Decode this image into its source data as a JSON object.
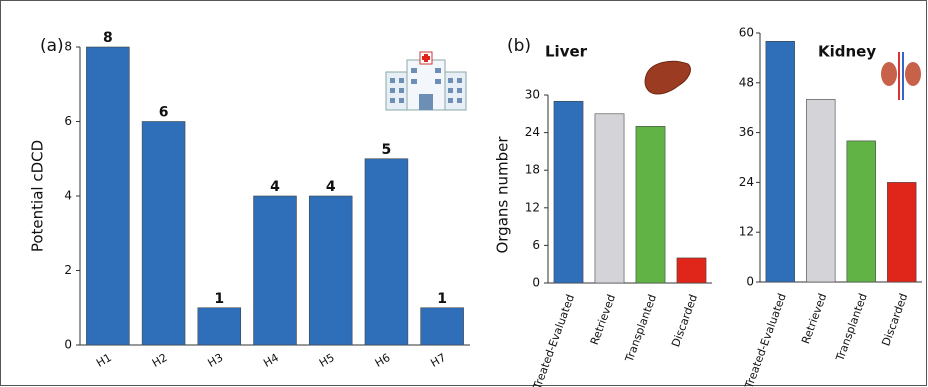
{
  "chart_data": [
    {
      "type": "bar",
      "panel_label": "(a)",
      "ylabel": "Potential cDCD",
      "categories": [
        "H1",
        "H2",
        "H3",
        "H4",
        "H5",
        "H6",
        "H7"
      ],
      "values": [
        8,
        6,
        1,
        4,
        4,
        5,
        1
      ],
      "color": "#2f6fba",
      "ylim": [
        0,
        8
      ],
      "yticks": [
        0,
        2,
        4,
        6,
        8
      ],
      "show_values": true
    },
    {
      "type": "bar",
      "panel_label": "(b)",
      "title": "Liver",
      "ylabel": "Organs number",
      "categories": [
        "Treated-Evaluated",
        "Retrieved",
        "Transplanted",
        "Discarded"
      ],
      "values": [
        29,
        27,
        25,
        4
      ],
      "colors": [
        "#2f6fba",
        "#d4d4d8",
        "#62b345",
        "#e0251b"
      ],
      "ylim": [
        0,
        30
      ],
      "yticks": [
        0,
        6,
        12,
        18,
        24,
        30
      ],
      "show_values": false
    },
    {
      "type": "bar",
      "title": "Kidney",
      "categories": [
        "Treated-Evaluated",
        "Retrieved",
        "Transplanted",
        "Discarded"
      ],
      "values": [
        58,
        44,
        34,
        24
      ],
      "colors": [
        "#2f6fba",
        "#d4d4d8",
        "#62b345",
        "#e0251b"
      ],
      "ylim": [
        0,
        60
      ],
      "yticks": [
        0,
        12,
        24,
        36,
        48,
        60
      ],
      "show_values": false
    }
  ]
}
